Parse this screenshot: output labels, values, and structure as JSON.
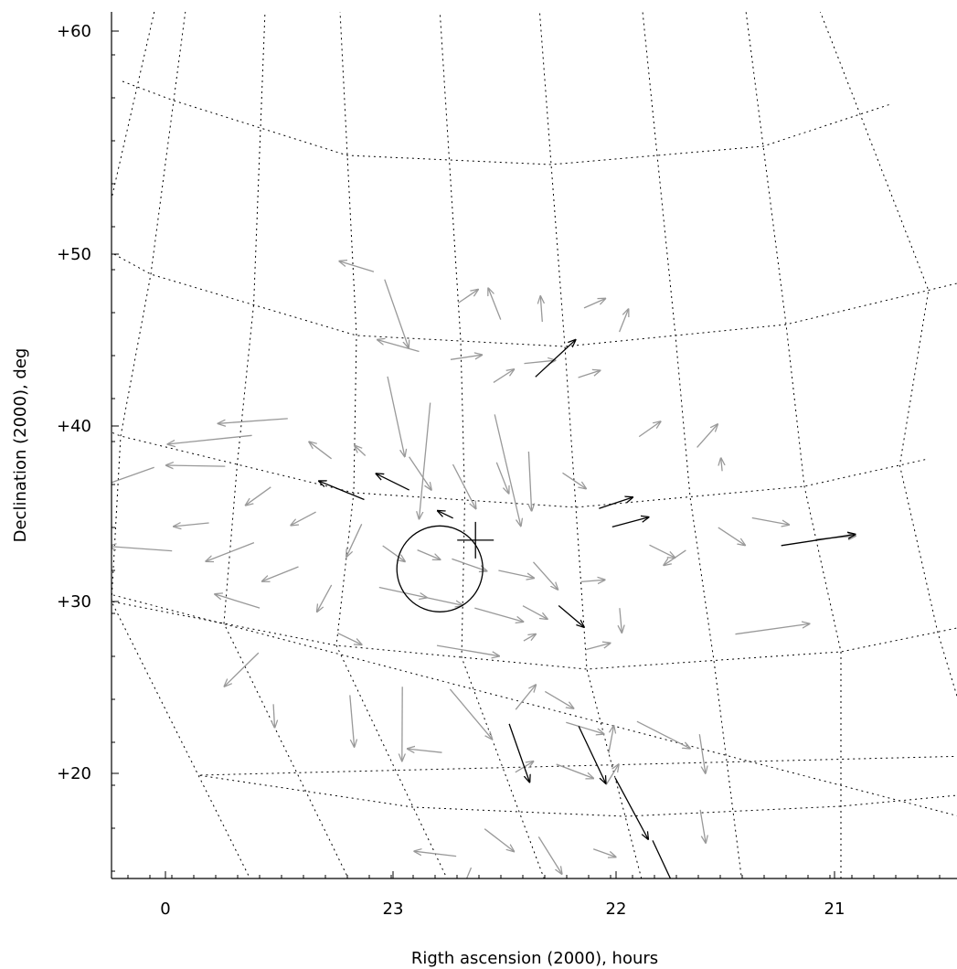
{
  "chart_data": {
    "type": "vector-field",
    "projection": "sky-grid",
    "xlabel": "Rigth ascension (2000), hours",
    "ylabel": "Declination (2000), deg",
    "x_ticks": [
      "0",
      "23",
      "22",
      "21"
    ],
    "y_ticks": [
      "+20",
      "+30",
      "+40",
      "+50",
      "+60"
    ],
    "grid": "dotted RA/Dec lines",
    "colors": {
      "gray_vectors": "#999999",
      "black_vectors": "#000000",
      "grid": "#000000"
    },
    "marker_circle": {
      "ra_hours": 22.6,
      "dec_deg": 35.5
    },
    "marker_cross": {
      "ra_hours": 22.45,
      "dec_deg": 37.5
    },
    "vectors_black": [
      {
        "ra": 22.95,
        "dec": 39.6,
        "dra": 0.2,
        "ddec": 0.6
      },
      {
        "ra": 22.75,
        "dec": 40.4,
        "dra": 0.15,
        "ddec": 0.9
      },
      {
        "ra": 22.55,
        "dec": 38.8,
        "dra": 0.07,
        "ddec": 0.4
      },
      {
        "ra": 22.15,
        "dec": 48.0,
        "dra": -0.2,
        "ddec": 2.3
      },
      {
        "ra": 21.9,
        "dec": 39.8,
        "dra": -0.15,
        "ddec": 0.5
      },
      {
        "ra": 21.85,
        "dec": 38.6,
        "dra": -0.16,
        "ddec": 0.4
      },
      {
        "ra": 21.15,
        "dec": 36.6,
        "dra": -0.35,
        "ddec": 0.0
      },
      {
        "ra": 22.1,
        "dec": 33.8,
        "dra": -0.1,
        "ddec": -1.2
      },
      {
        "ra": 22.4,
        "dec": 25.8,
        "dra": 0.0,
        "ddec": -3.8
      },
      {
        "ra": 22.1,
        "dec": 26.0,
        "dra": -0.05,
        "ddec": -3.8
      },
      {
        "ra": 22.0,
        "dec": 22.6,
        "dra": -0.08,
        "ddec": -4.2
      },
      {
        "ra": 21.9,
        "dec": 18.3,
        "dra": -0.08,
        "ddec": -4.5
      }
    ],
    "vectors_gray": [
      {
        "ra": 22.9,
        "dec": 53.6,
        "dra": 0.17,
        "ddec": 0.3
      },
      {
        "ra": 22.85,
        "dec": 53.2,
        "dra": -0.1,
        "ddec": -3.8
      },
      {
        "ra": 22.5,
        "dec": 52.1,
        "dra": -0.1,
        "ddec": 0.8
      },
      {
        "ra": 22.3,
        "dec": 51.3,
        "dra": 0.05,
        "ddec": 1.7
      },
      {
        "ra": 22.1,
        "dec": 51.3,
        "dra": 0.0,
        "ddec": 1.4
      },
      {
        "ra": 21.9,
        "dec": 52.0,
        "dra": -0.1,
        "ddec": 0.4
      },
      {
        "ra": 21.75,
        "dec": 50.5,
        "dra": -0.05,
        "ddec": 1.2
      },
      {
        "ra": 22.7,
        "dec": 49.2,
        "dra": 0.2,
        "ddec": 0.6
      },
      {
        "ra": 22.55,
        "dec": 48.8,
        "dra": -0.15,
        "ddec": 0.4
      },
      {
        "ra": 22.35,
        "dec": 47.5,
        "dra": -0.1,
        "ddec": 0.9
      },
      {
        "ra": 22.2,
        "dec": 48.8,
        "dra": -0.15,
        "ddec": 0.3
      },
      {
        "ra": 21.95,
        "dec": 48.0,
        "dra": -0.1,
        "ddec": 0.3
      },
      {
        "ra": 22.85,
        "dec": 47.5,
        "dra": -0.08,
        "ddec": -5.0
      },
      {
        "ra": 22.65,
        "dec": 46.0,
        "dra": 0.05,
        "ddec": -7.4
      },
      {
        "ra": 22.35,
        "dec": 45.5,
        "dra": -0.1,
        "ddec": -6.9
      },
      {
        "ra": 22.2,
        "dec": 43.3,
        "dra": 0.0,
        "ddec": -3.7
      },
      {
        "ra": 21.7,
        "dec": 44.0,
        "dra": -0.1,
        "ddec": 0.8
      },
      {
        "ra": 21.45,
        "dec": 43.0,
        "dra": -0.1,
        "ddec": 1.3
      },
      {
        "ra": 21.35,
        "dec": 41.4,
        "dra": 0.0,
        "ddec": 0.8
      },
      {
        "ra": 23.3,
        "dec": 43.6,
        "dra": 0.3,
        "ddec": -1.4
      },
      {
        "ra": 23.45,
        "dec": 42.0,
        "dra": 0.35,
        "ddec": -1.8
      },
      {
        "ra": 23.1,
        "dec": 41.8,
        "dra": 0.1,
        "ddec": 0.7
      },
      {
        "ra": 22.95,
        "dec": 42.4,
        "dra": 0.05,
        "ddec": 0.6
      },
      {
        "ra": 22.75,
        "dec": 42.5,
        "dra": -0.1,
        "ddec": -2.0
      },
      {
        "ra": 22.55,
        "dec": 42.2,
        "dra": -0.1,
        "ddec": -2.7
      },
      {
        "ra": 22.35,
        "dec": 42.5,
        "dra": -0.05,
        "ddec": -1.9
      },
      {
        "ra": 22.05,
        "dec": 42.1,
        "dra": -0.1,
        "ddec": -1.0
      },
      {
        "ra": 23.55,
        "dec": 39.7,
        "dra": 0.25,
        "ddec": -0.8
      },
      {
        "ra": 23.35,
        "dec": 39.1,
        "dra": 0.1,
        "ddec": -1.5
      },
      {
        "ra": 23.15,
        "dec": 38.2,
        "dra": 0.1,
        "ddec": -1.2
      },
      {
        "ra": 22.95,
        "dec": 38.0,
        "dra": 0.05,
        "ddec": -2.2
      },
      {
        "ra": 22.85,
        "dec": 36.7,
        "dra": -0.1,
        "ddec": -0.9
      },
      {
        "ra": 22.7,
        "dec": 36.6,
        "dra": -0.1,
        "ddec": -0.5
      },
      {
        "ra": 22.55,
        "dec": 36.2,
        "dra": -0.15,
        "ddec": -0.6
      },
      {
        "ra": 22.35,
        "dec": 35.7,
        "dra": -0.15,
        "ddec": -0.3
      },
      {
        "ra": 22.2,
        "dec": 36.4,
        "dra": -0.1,
        "ddec": -1.6
      },
      {
        "ra": 22.0,
        "dec": 35.4,
        "dra": -0.1,
        "ddec": 0.0
      },
      {
        "ra": 21.85,
        "dec": 33.6,
        "dra": 0.0,
        "ddec": -1.5
      },
      {
        "ra": 21.7,
        "dec": 37.3,
        "dra": -0.1,
        "ddec": -0.9
      },
      {
        "ra": 21.55,
        "dec": 36.8,
        "dra": 0.1,
        "ddec": -0.8
      },
      {
        "ra": 21.4,
        "dec": 38.0,
        "dra": -0.1,
        "ddec": -1.2
      },
      {
        "ra": 21.25,
        "dec": 38.4,
        "dra": -0.15,
        "ddec": -0.6
      },
      {
        "ra": 23.6,
        "dec": 36.0,
        "dra": 0.15,
        "ddec": -0.7
      },
      {
        "ra": 23.4,
        "dec": 35.4,
        "dra": 0.2,
        "ddec": -1.8
      },
      {
        "ra": 23.2,
        "dec": 34.5,
        "dra": 0.15,
        "ddec": -1.4
      },
      {
        "ra": 23.05,
        "dec": 33.8,
        "dra": 0.05,
        "ddec": -1.9
      },
      {
        "ra": 22.85,
        "dec": 34.0,
        "dra": -0.2,
        "ddec": -0.4
      },
      {
        "ra": 22.65,
        "dec": 33.6,
        "dra": -0.15,
        "ddec": -0.3
      },
      {
        "ra": 22.45,
        "dec": 33.2,
        "dra": -0.2,
        "ddec": -0.6
      },
      {
        "ra": 22.25,
        "dec": 33.6,
        "dra": -0.1,
        "ddec": -0.7
      },
      {
        "ra": 22.0,
        "dec": 31.2,
        "dra": -0.1,
        "ddec": 0.3
      },
      {
        "ra": 21.4,
        "dec": 31.5,
        "dra": -0.3,
        "ddec": 0.3
      },
      {
        "ra": 23.35,
        "dec": 31.4,
        "dra": 0.2,
        "ddec": 0.3
      },
      {
        "ra": 23.0,
        "dec": 30.8,
        "dra": -0.1,
        "ddec": -0.6
      },
      {
        "ra": 22.6,
        "dec": 30.6,
        "dra": -0.25,
        "ddec": -0.3
      },
      {
        "ra": 22.25,
        "dec": 31.4,
        "dra": -0.05,
        "ddec": 0.5
      },
      {
        "ra": 23.4,
        "dec": 28.5,
        "dra": 0.25,
        "ddec": -2.6
      },
      {
        "ra": 23.05,
        "dec": 26.8,
        "dra": 0.1,
        "ddec": -3.4
      },
      {
        "ra": 22.8,
        "dec": 27.7,
        "dra": 0.15,
        "ddec": -4.8
      },
      {
        "ra": 22.6,
        "dec": 27.8,
        "dra": -0.1,
        "ddec": -3.1
      },
      {
        "ra": 22.35,
        "dec": 26.8,
        "dra": -0.12,
        "ddec": 1.8
      },
      {
        "ra": 22.2,
        "dec": 28.2,
        "dra": -0.1,
        "ddec": -1.0
      },
      {
        "ra": 22.15,
        "dec": 26.2,
        "dra": -0.15,
        "ddec": -0.6
      },
      {
        "ra": 22.0,
        "dec": 24.3,
        "dra": -0.05,
        "ddec": 1.8
      },
      {
        "ra": 21.85,
        "dec": 26.3,
        "dra": -0.2,
        "ddec": -2.0
      },
      {
        "ra": 21.6,
        "dec": 25.2,
        "dra": 0.0,
        "ddec": -2.6
      },
      {
        "ra": 22.75,
        "dec": 23.6,
        "dra": 0.15,
        "ddec": 0.1
      },
      {
        "ra": 22.45,
        "dec": 22.6,
        "dra": -0.1,
        "ddec": 0.8
      },
      {
        "ra": 22.25,
        "dec": 23.3,
        "dra": -0.15,
        "ddec": -0.8
      },
      {
        "ra": 22.05,
        "dec": 22.1,
        "dra": -0.08,
        "ddec": 1.4
      },
      {
        "ra": 21.65,
        "dec": 20.2,
        "dra": 0.0,
        "ddec": -2.2
      },
      {
        "ra": 22.7,
        "dec": 18.8,
        "dra": -0.1,
        "ddec": -1.4
      },
      {
        "ra": 22.45,
        "dec": 18.4,
        "dra": -0.05,
        "ddec": -2.4
      },
      {
        "ra": 22.2,
        "dec": 17.7,
        "dra": -0.1,
        "ddec": -0.5
      },
      {
        "ra": 22.9,
        "dec": 17.0,
        "dra": 0.2,
        "ddec": 0.1
      },
      {
        "ra": 23.45,
        "dec": 25.3,
        "dra": 0.05,
        "ddec": -1.5
      },
      {
        "ra": 22.85,
        "dec": 16.3,
        "dra": 0.1,
        "ddec": -1.4
      },
      {
        "ra": 23.75,
        "dec": 33.8,
        "dra": 0.3,
        "ddec": -0.6
      },
      {
        "ra": 23.85,
        "dec": 38.6,
        "dra": 0.35,
        "ddec": -2.3
      },
      {
        "ra": 21.0,
        "dec": 36.8,
        "dra": -0.2,
        "ddec": -0.3
      }
    ]
  }
}
